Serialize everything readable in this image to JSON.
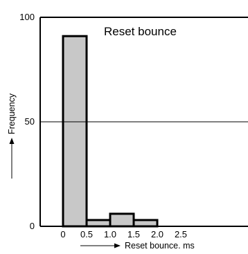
{
  "chart_data": {
    "type": "bar",
    "title": "Reset bounce",
    "xlabel": "Reset bounce. ms",
    "ylabel": "Frequency",
    "x_ticks": [
      "0",
      "0.5",
      "1.0",
      "1.5",
      "2.0",
      "2.5"
    ],
    "y_ticks": [
      "0",
      "50",
      "100"
    ],
    "bins": [
      {
        "start": 0.0,
        "end": 0.5,
        "value": 91
      },
      {
        "start": 0.5,
        "end": 1.0,
        "value": 3
      },
      {
        "start": 1.0,
        "end": 1.5,
        "value": 6
      },
      {
        "start": 1.5,
        "end": 2.0,
        "value": 3
      }
    ],
    "reference_line": 50,
    "ylim": [
      0,
      100
    ],
    "xlim": [
      -0.5,
      3.5
    ],
    "grid": false,
    "bar_color": "#c8c8c8",
    "line_color": "#000000"
  }
}
